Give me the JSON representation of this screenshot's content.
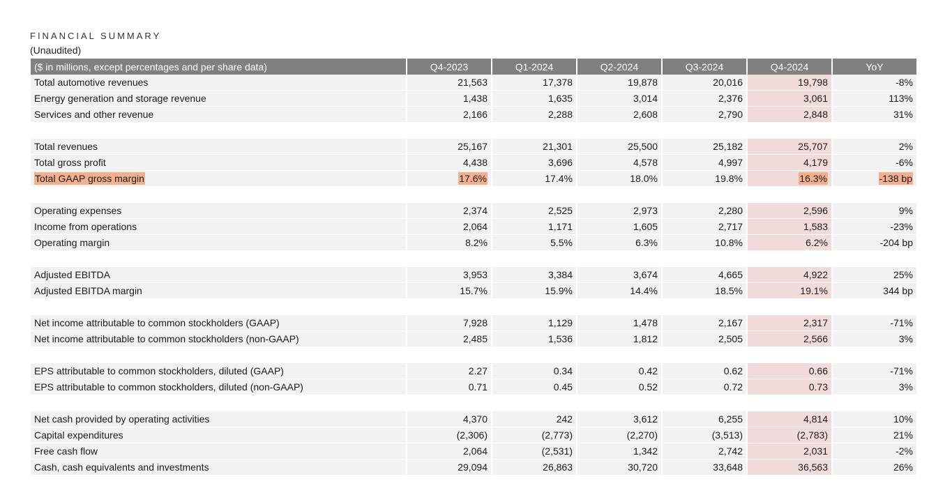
{
  "header": {
    "title": "FINANCIAL SUMMARY",
    "subtitle": "(Unaudited)"
  },
  "table": {
    "label_header": "($ in millions, except percentages and per share data)",
    "columns": [
      "Q4-2023",
      "Q1-2024",
      "Q2-2024",
      "Q3-2024",
      "Q4-2024",
      "YoY"
    ],
    "rows": [
      {
        "label": "Total automotive revenues",
        "values": [
          "21,563",
          "17,378",
          "19,878",
          "20,016",
          "19,798",
          "-8%"
        ]
      },
      {
        "label": "Energy generation and storage revenue",
        "values": [
          "1,438",
          "1,635",
          "3,014",
          "2,376",
          "3,061",
          "113%"
        ]
      },
      {
        "label": "Services and other revenue",
        "values": [
          "2,166",
          "2,288",
          "2,608",
          "2,790",
          "2,848",
          "31%"
        ]
      },
      {
        "label": "Total revenues",
        "values": [
          "25,167",
          "21,301",
          "25,500",
          "25,182",
          "25,707",
          "2%"
        ]
      },
      {
        "label": "Total gross profit",
        "values": [
          "4,438",
          "3,696",
          "4,578",
          "4,997",
          "4,179",
          "-6%"
        ]
      },
      {
        "label": "Total GAAP gross margin",
        "values": [
          "17.6%",
          "17.4%",
          "18.0%",
          "19.8%",
          "16.3%",
          "-138 bp"
        ]
      },
      {
        "label": "Operating expenses",
        "values": [
          "2,374",
          "2,525",
          "2,973",
          "2,280",
          "2,596",
          "9%"
        ]
      },
      {
        "label": "Income from operations",
        "values": [
          "2,064",
          "1,171",
          "1,605",
          "2,717",
          "1,583",
          "-23%"
        ]
      },
      {
        "label": "Operating margin",
        "values": [
          "8.2%",
          "5.5%",
          "6.3%",
          "10.8%",
          "6.2%",
          "-204 bp"
        ]
      },
      {
        "label": "Adjusted EBITDA",
        "values": [
          "3,953",
          "3,384",
          "3,674",
          "4,665",
          "4,922",
          "25%"
        ]
      },
      {
        "label": "Adjusted EBITDA margin",
        "values": [
          "15.7%",
          "15.9%",
          "14.4%",
          "18.5%",
          "19.1%",
          "344 bp"
        ]
      },
      {
        "label": "Net income attributable to common stockholders (GAAP)",
        "values": [
          "7,928",
          "1,129",
          "1,478",
          "2,167",
          "2,317",
          "-71%"
        ]
      },
      {
        "label": "Net income attributable to common stockholders (non-GAAP)",
        "values": [
          "2,485",
          "1,536",
          "1,812",
          "2,505",
          "2,566",
          "3%"
        ]
      },
      {
        "label": "EPS attributable to common stockholders, diluted (GAAP)",
        "values": [
          "2.27",
          "0.34",
          "0.42",
          "0.62",
          "0.66",
          "-71%"
        ]
      },
      {
        "label": "EPS attributable to common stockholders, diluted (non-GAAP)",
        "values": [
          "0.71",
          "0.45",
          "0.52",
          "0.72",
          "0.73",
          "3%"
        ]
      },
      {
        "label": "Net cash provided by operating activities",
        "values": [
          "4,370",
          "242",
          "3,612",
          "6,255",
          "4,814",
          "10%"
        ]
      },
      {
        "label": "Capital expenditures",
        "values": [
          "(2,306)",
          "(2,773)",
          "(2,270)",
          "(3,513)",
          "(2,783)",
          "21%"
        ]
      },
      {
        "label": "Free cash flow",
        "values": [
          "2,064",
          "(2,531)",
          "1,342",
          "2,742",
          "2,031",
          "-2%"
        ]
      },
      {
        "label": "Cash, cash equivalents and investments",
        "values": [
          "29,094",
          "26,863",
          "30,720",
          "33,648",
          "36,563",
          "26%"
        ]
      }
    ]
  },
  "colors": {
    "header_bg": "#808080",
    "row_bg": "#f2f2f2",
    "current_quarter_bg": "#f2dcdb",
    "highlight": "#f4b08c"
  }
}
